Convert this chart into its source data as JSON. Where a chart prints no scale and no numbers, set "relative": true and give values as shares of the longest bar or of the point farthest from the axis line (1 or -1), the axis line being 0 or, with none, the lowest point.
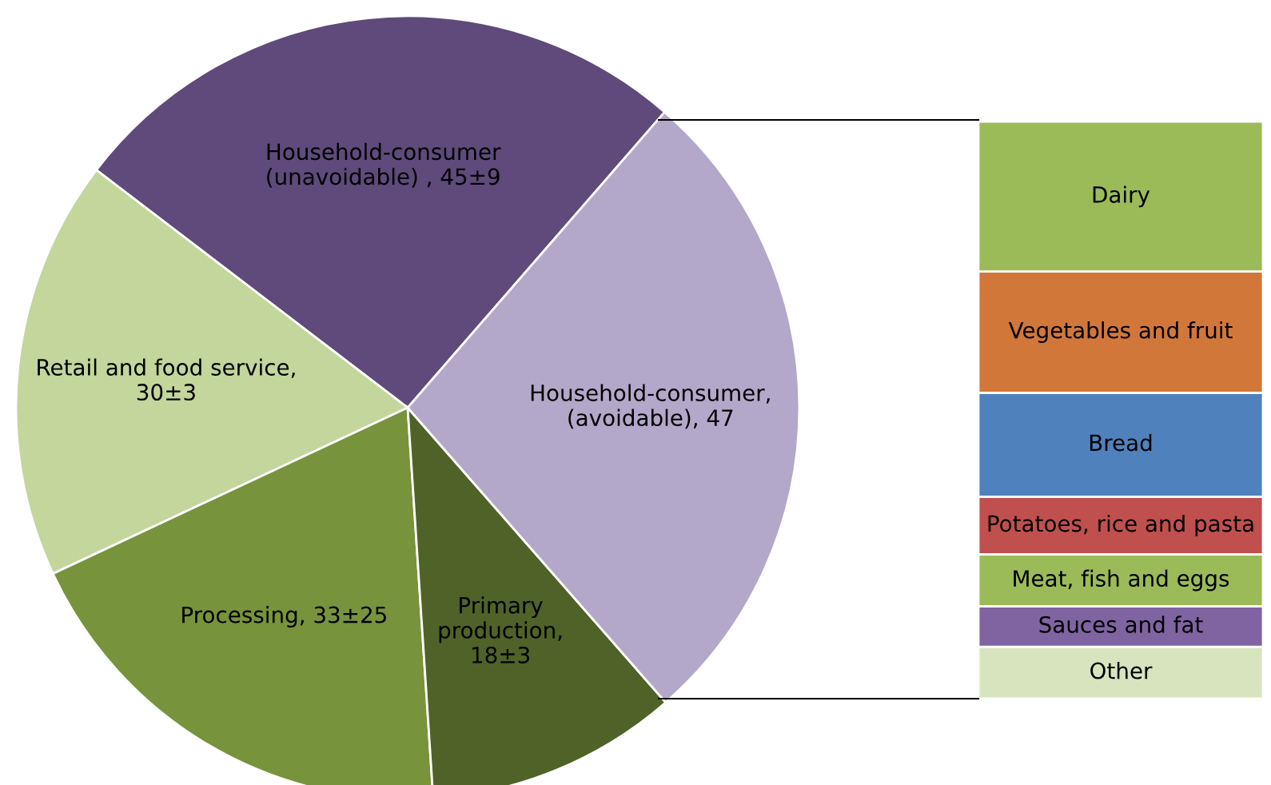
{
  "chart_data": [
    {
      "type": "pie",
      "categories": [
        "Household-consumer\n(unavoidable) , 45±9",
        "Retail and food service,\n30±3",
        "Processing, 33±25",
        "Primary\nproduction,\n18±3",
        "Household-consumer,\n(avoidable), 47"
      ],
      "values": [
        45,
        30,
        33,
        18,
        47
      ],
      "colors": [
        "#5f4a7b",
        "#c3d69b",
        "#77933c",
        "#4f6228",
        "#b3a8c9"
      ]
    },
    {
      "type": "bar",
      "stacked": true,
      "relative": true,
      "categories": [
        null
      ],
      "series": [
        {
          "name": "Other",
          "color": "#d7e4bd",
          "values": [
            0.09
          ]
        },
        {
          "name": "Sauces and fat",
          "color": "#8064a2",
          "values": [
            0.07
          ]
        },
        {
          "name": "Meat, fish and eggs",
          "color": "#9bbb59",
          "values": [
            0.09
          ]
        },
        {
          "name": "Potatoes, rice and pasta",
          "color": "#c0504d",
          "values": [
            0.1
          ]
        },
        {
          "name": "Bread",
          "color": "#4f81bd",
          "values": [
            0.18
          ]
        },
        {
          "name": "Vegetables and fruit",
          "color": "#d2773a",
          "values": [
            0.21
          ]
        },
        {
          "name": "Dairy",
          "color": "#9bbb59",
          "values": [
            0.26
          ]
        }
      ]
    }
  ]
}
